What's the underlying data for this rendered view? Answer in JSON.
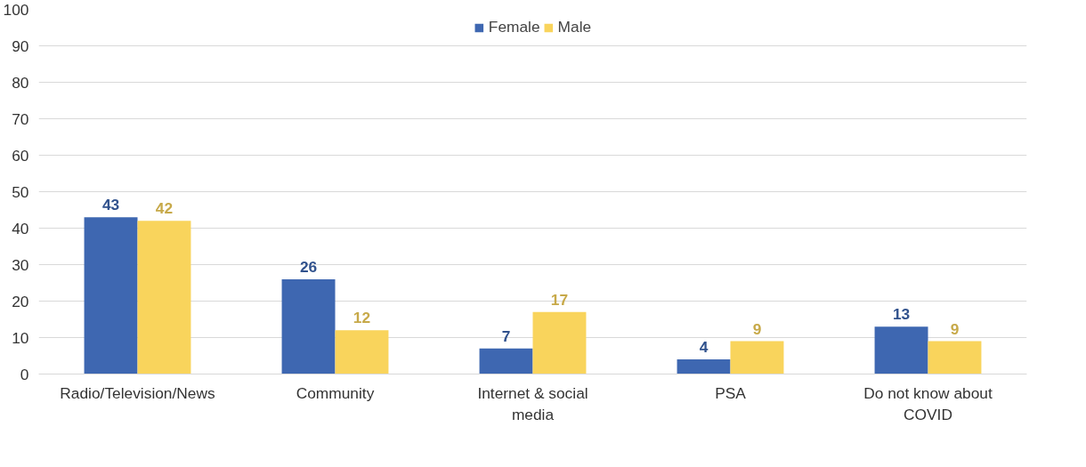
{
  "chart_data": {
    "type": "bar",
    "categories": [
      "Radio/Television/News",
      "Community",
      "Internet & social media",
      "PSA",
      "Do not know about COVID"
    ],
    "series": [
      {
        "name": "Female",
        "color": "#3e67b1",
        "values": [
          43,
          26,
          7,
          4,
          13
        ]
      },
      {
        "name": "Male",
        "color": "#f9d45c",
        "values": [
          42,
          12,
          17,
          9,
          9
        ]
      }
    ],
    "ylim": [
      0,
      100
    ],
    "yticks": [
      0,
      10,
      20,
      30,
      40,
      50,
      60,
      70,
      80,
      90,
      100
    ],
    "grid": "y",
    "legend": "top",
    "data_labels": true
  }
}
